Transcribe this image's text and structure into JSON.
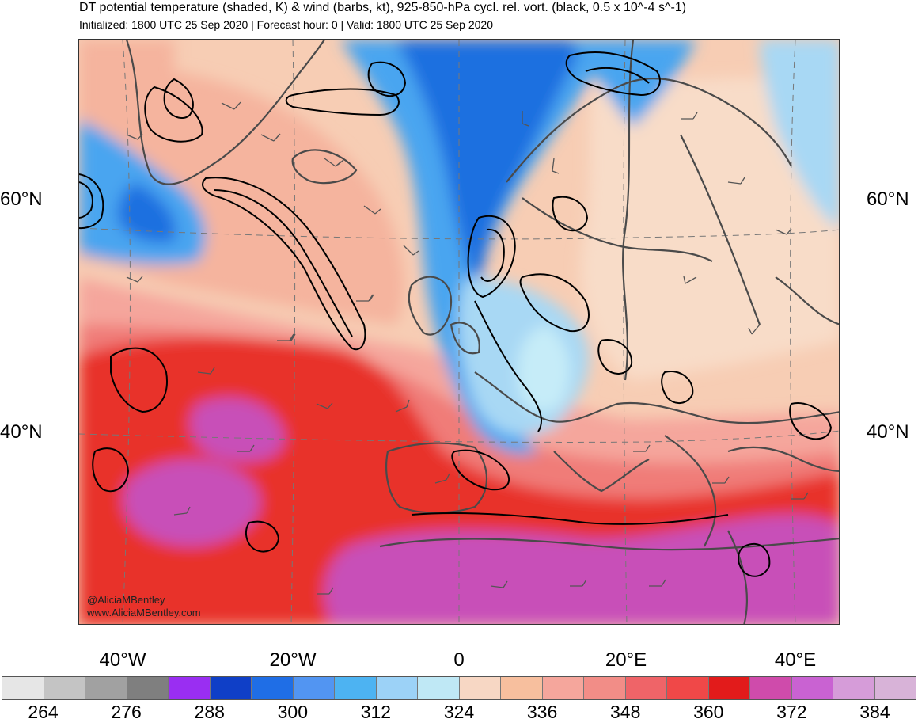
{
  "header": {
    "title": "DT potential temperature (shaded, K) & wind (barbs, kt), 925-850-hPa cycl. rel. vort. (black, 0.5 x 10^-4 s^-1)",
    "subtitle": "Initialized: 1800 UTC 25 Sep 2020 | Forecast hour: 0 | Valid: 1800 UTC 25 Sep 2020"
  },
  "map": {
    "lat_labels": {
      "lat60_left": "60°N",
      "lat60_right": "60°N",
      "lat40_left": "40°N",
      "lat40_right": "40°N"
    },
    "lon_labels": [
      "40°W",
      "20°W",
      "0",
      "20°E",
      "40°E"
    ],
    "credits": {
      "handle": "@AliciaMBentley",
      "website": "www.AliciaMBentley.com"
    },
    "colors": {
      "ocean_cool_deep": "#1f6fe0",
      "ocean_cool": "#4aa5f0",
      "light_blue": "#a8d8f4",
      "peach": "#f7d7c2",
      "salmon": "#f4b49c",
      "red": "#e8302a",
      "deep_red": "#d81818",
      "magenta": "#c84fb8",
      "contour": "#000000",
      "coastline": "#4a4a4a"
    }
  },
  "colorbar": {
    "swatches": [
      "#e6e6e6",
      "#c4c4c4",
      "#a1a1a1",
      "#7f7f7f",
      "#9a2ef2",
      "#0f3fc7",
      "#1f6ee6",
      "#5295f2",
      "#4db3f2",
      "#9cd2f7",
      "#bfe8f5",
      "#f7d7c4",
      "#f7bf9e",
      "#f5a69c",
      "#f28d87",
      "#ef6468",
      "#f04848",
      "#e21b1b",
      "#cf4bab",
      "#c962d2",
      "#d69cd9",
      "#d8b3d8"
    ],
    "tick_labels": [
      "264",
      "276",
      "288",
      "300",
      "312",
      "324",
      "336",
      "348",
      "360",
      "372",
      "384"
    ]
  }
}
